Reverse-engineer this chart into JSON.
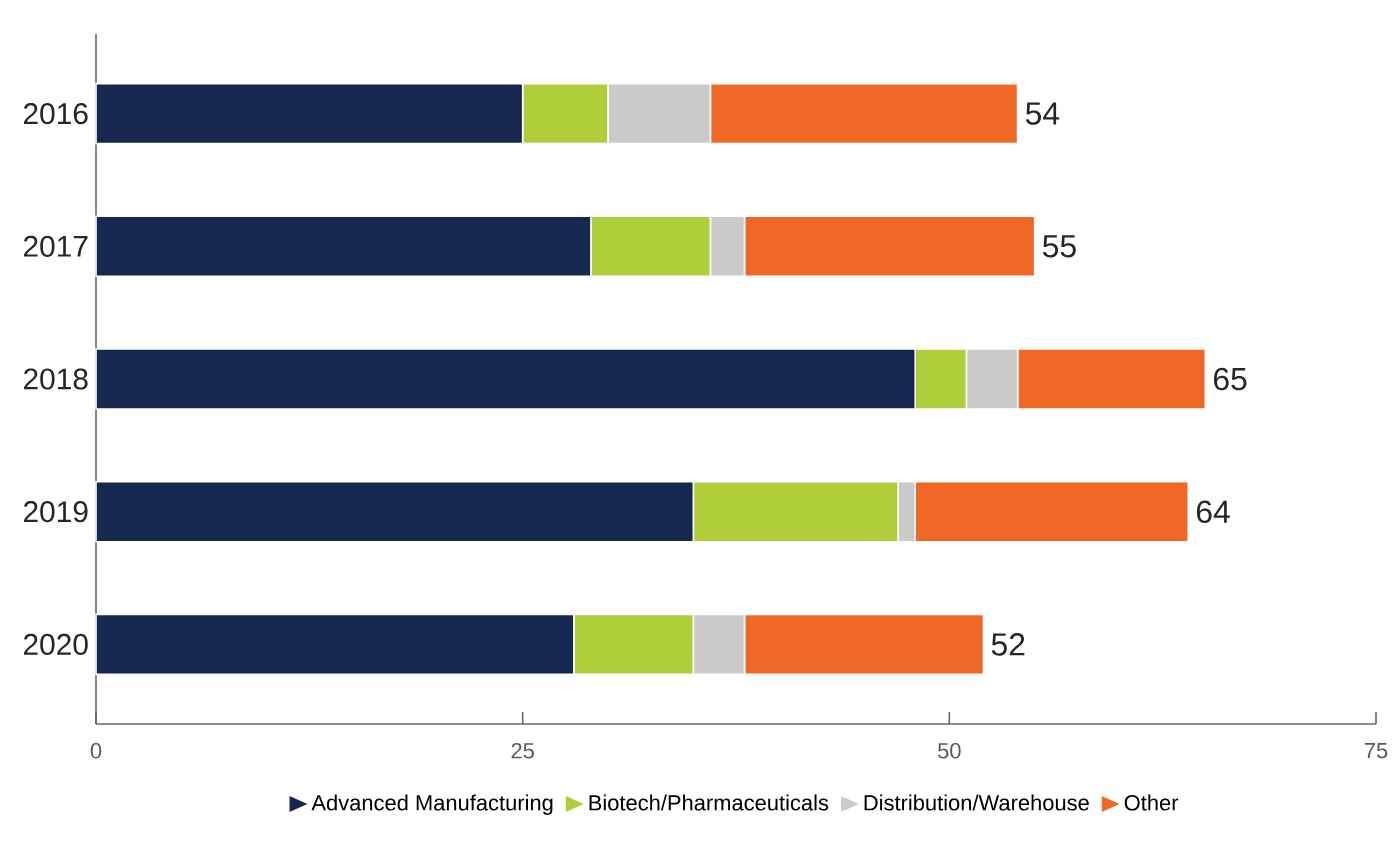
{
  "chart_data": {
    "type": "bar",
    "orientation": "horizontal",
    "stacked": true,
    "categories": [
      "2016",
      "2017",
      "2018",
      "2019",
      "2020"
    ],
    "series": [
      {
        "name": "Advanced Manufacturing",
        "color": "#16284f",
        "values": [
          25,
          29,
          48,
          35,
          28
        ]
      },
      {
        "name": "Biotech/Pharmaceuticals",
        "color": "#aecf3a",
        "values": [
          5,
          7,
          3,
          12,
          7
        ]
      },
      {
        "name": "Distribution/Warehouse",
        "color": "#cacaca",
        "values": [
          6,
          2,
          3,
          1,
          3
        ]
      },
      {
        "name": "Other",
        "color": "#f06825",
        "values": [
          18,
          17,
          11,
          16,
          14
        ]
      }
    ],
    "totals": [
      "54",
      "55",
      "65",
      "64",
      "52"
    ],
    "xlim": [
      0,
      75
    ],
    "xticks": [
      0,
      25,
      50,
      75
    ],
    "legend": "bottom",
    "marker": "triangle",
    "grid": false
  }
}
